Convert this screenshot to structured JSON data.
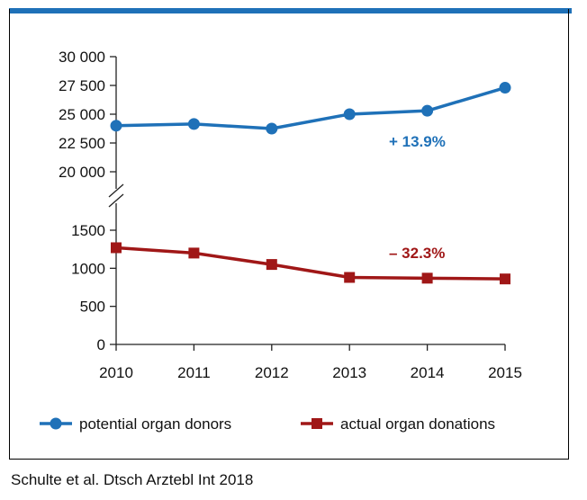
{
  "chart_data": {
    "type": "line",
    "categories": [
      "2010",
      "2011",
      "2012",
      "2013",
      "2014",
      "2015"
    ],
    "upper_axis": {
      "ylim": [
        20000,
        30000
      ],
      "ticks": [
        20000,
        22500,
        25000,
        27500,
        30000
      ],
      "tick_labels": [
        "20 000",
        "22 500",
        "25 000",
        "27 500",
        "30 000"
      ]
    },
    "lower_axis": {
      "ylim": [
        0,
        1500
      ],
      "ticks": [
        0,
        500,
        1000,
        1500
      ],
      "tick_labels": [
        "0",
        "500",
        "1000",
        "1500"
      ]
    },
    "axis_break": true,
    "grid": false,
    "legend_position": "bottom",
    "series": [
      {
        "name": "potential organ donors",
        "axis": "upper",
        "marker": "circle",
        "color": "#1f71b8",
        "values": [
          24000,
          24150,
          23750,
          25000,
          25300,
          27300
        ],
        "annotation": "+ 13.9%"
      },
      {
        "name": "actual organ donations",
        "axis": "lower",
        "marker": "square",
        "color": "#a01717",
        "values": [
          1270,
          1200,
          1050,
          880,
          870,
          860
        ],
        "annotation": "– 32.3%"
      }
    ]
  },
  "credit": "Schulte et al. Dtsch Arztebl Int 2018"
}
